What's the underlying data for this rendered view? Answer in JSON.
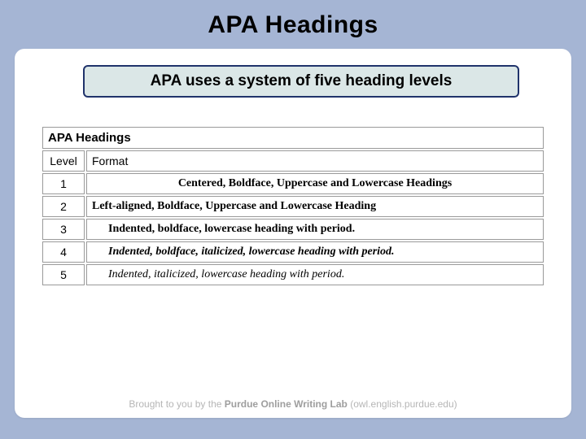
{
  "slide": {
    "title": "APA Headings",
    "callout": "APA uses a system of five heading levels"
  },
  "table": {
    "caption": "APA Headings",
    "headers": {
      "level": "Level",
      "format": "Format"
    },
    "rows": [
      {
        "level": "1",
        "format": "Centered, Boldface, Uppercase and Lowercase Headings",
        "align": "center",
        "bold": true,
        "italic": false
      },
      {
        "level": "2",
        "format": "Left-aligned, Boldface, Uppercase and Lowercase Heading",
        "align": "left",
        "bold": true,
        "italic": false
      },
      {
        "level": "3",
        "format": "Indented, boldface, lowercase heading with period.",
        "align": "indent",
        "bold": true,
        "italic": false
      },
      {
        "level": "4",
        "format": "Indented, boldface, italicized, lowercase heading with period.",
        "align": "indent",
        "bold": true,
        "italic": true
      },
      {
        "level": "5",
        "format": "Indented, italicized, lowercase heading with period.",
        "align": "indent",
        "bold": false,
        "italic": true
      }
    ]
  },
  "footer": {
    "prefix": "Brought to you by the ",
    "brand": "Purdue Online Writing Lab",
    "suffix": " (owl.english.purdue.edu)"
  },
  "colors": {
    "page_bg": "#a5b5d4",
    "card_bg": "#ffffff",
    "callout_bg": "#dbe7e7",
    "callout_border": "#20336b",
    "cell_border": "#9a9a9a",
    "footer_text": "#b6b6b6"
  }
}
